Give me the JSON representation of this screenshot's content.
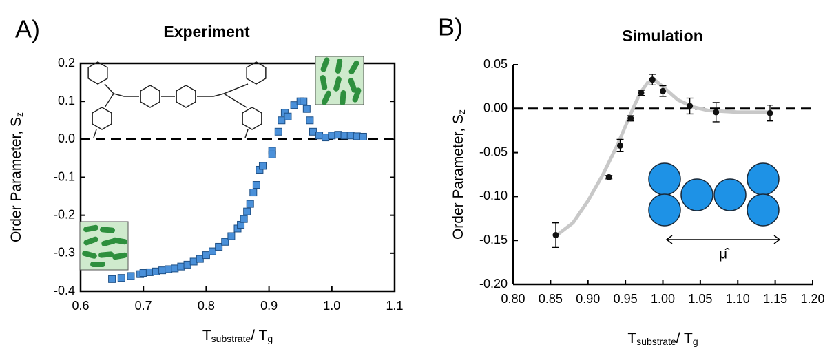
{
  "chart_data": [
    {
      "type": "scatter",
      "panel_label": "A)",
      "title": "Experiment",
      "xlabel": [
        "T",
        "substrate",
        "/ T",
        "g"
      ],
      "ylabel": [
        "Order Parameter, S",
        "z"
      ],
      "xlim": [
        0.6,
        1.1
      ],
      "ylim": [
        -0.4,
        0.2
      ],
      "xticks": [
        0.6,
        0.7,
        0.8,
        0.9,
        {
          "value": 1.0,
          "label": "1.0"
        },
        1.1
      ],
      "yticks": [
        0.2,
        0.1,
        {
          "value": 0,
          "label": "0.0"
        },
        -0.1,
        -0.2,
        -0.3,
        -0.4
      ],
      "hline": 0,
      "series": [
        {
          "style": "square",
          "color": "#4a90d9",
          "x": [
            0.65,
            0.665,
            0.68,
            0.695,
            0.7,
            0.71,
            0.72,
            0.73,
            0.74,
            0.75,
            0.76,
            0.77,
            0.78,
            0.79,
            0.8,
            0.81,
            0.82,
            0.83,
            0.84,
            0.85,
            0.855,
            0.86,
            0.865,
            0.87,
            0.875,
            0.88,
            0.885,
            0.89,
            0.905,
            0.905,
            0.915,
            0.92,
            0.925,
            0.93,
            0.94,
            0.95,
            0.955,
            0.96,
            0.965,
            0.97,
            0.98,
            0.99,
            1.0,
            1.01,
            1.02,
            1.03,
            1.04,
            1.05
          ],
          "values": [
            -0.368,
            -0.365,
            -0.36,
            -0.355,
            -0.352,
            -0.35,
            -0.348,
            -0.345,
            -0.342,
            -0.34,
            -0.335,
            -0.33,
            -0.322,
            -0.315,
            -0.305,
            -0.295,
            -0.283,
            -0.27,
            -0.255,
            -0.235,
            -0.225,
            -0.21,
            -0.19,
            -0.17,
            -0.14,
            -0.12,
            -0.08,
            -0.07,
            -0.03,
            -0.04,
            0.02,
            0.05,
            0.07,
            0.06,
            0.09,
            0.1,
            0.1,
            0.08,
            0.05,
            0.02,
            0.01,
            0.005,
            0.01,
            0.012,
            0.01,
            0.01,
            0.008,
            0.007
          ]
        }
      ]
    },
    {
      "type": "scatter",
      "panel_label": "B)",
      "title": "Simulation",
      "xlabel": [
        "T",
        "substrate",
        "/ T",
        "g"
      ],
      "ylabel": [
        "Order Parameter, S",
        "z"
      ],
      "xlim": [
        0.8,
        1.2
      ],
      "ylim": [
        -0.2,
        0.05
      ],
      "xticks": [
        {
          "value": 0.8,
          "label": "0.80"
        },
        0.85,
        {
          "value": 0.9,
          "label": "0.90"
        },
        0.95,
        {
          "value": 1.0,
          "label": "1.00"
        },
        1.05,
        {
          "value": 1.1,
          "label": "1.10"
        },
        1.15,
        {
          "value": 1.2,
          "label": "1.20"
        }
      ],
      "yticks": [
        0.05,
        {
          "value": 0,
          "label": "0.00"
        },
        -0.05,
        {
          "value": -0.1,
          "label": "-0.10"
        },
        -0.15,
        {
          "value": -0.2,
          "label": "-0.20"
        }
      ],
      "hline": 0,
      "annotations": [
        "μ̂"
      ],
      "series": [
        {
          "style": "line",
          "color": "#c8c8c8",
          "x": [
            0.857,
            0.88,
            0.9,
            0.92,
            0.94,
            0.95,
            0.96,
            0.97,
            0.98,
            0.99,
            1.0,
            1.02,
            1.04,
            1.06,
            1.1,
            1.143
          ],
          "values": [
            -0.145,
            -0.13,
            -0.105,
            -0.075,
            -0.04,
            -0.02,
            0.0,
            0.018,
            0.03,
            0.032,
            0.025,
            0.01,
            0.002,
            -0.002,
            -0.004,
            -0.004
          ]
        },
        {
          "style": "circle",
          "color": "#111111",
          "x": [
            0.857,
            0.928,
            0.943,
            0.957,
            0.971,
            0.986,
            1.0,
            1.036,
            1.071,
            1.143
          ],
          "values": [
            -0.144,
            -0.078,
            -0.042,
            -0.011,
            0.018,
            0.033,
            0.02,
            0.003,
            -0.004,
            -0.005
          ],
          "errors": [
            0.014,
            0.002,
            0.007,
            0.003,
            0.003,
            0.006,
            0.006,
            0.009,
            0.011,
            0.009
          ]
        }
      ]
    }
  ]
}
